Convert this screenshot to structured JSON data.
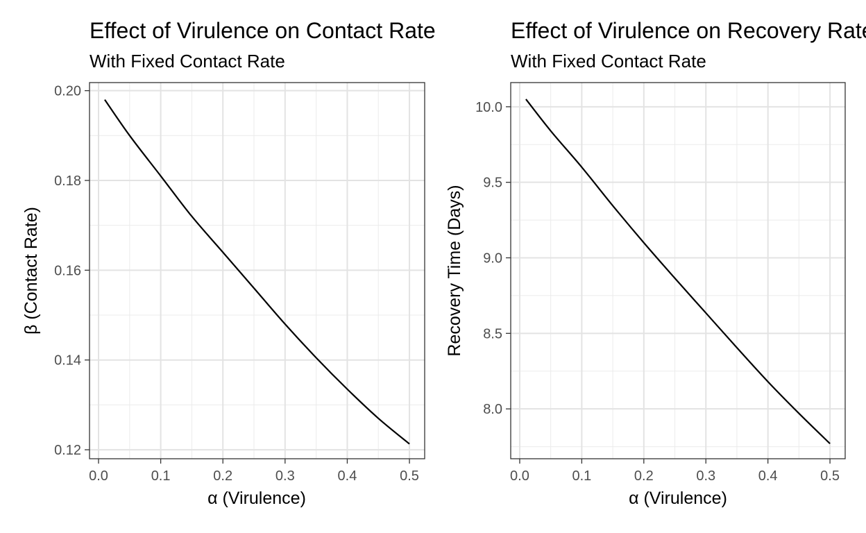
{
  "chart_data": [
    {
      "type": "line",
      "title": "Effect of Virulence on Contact Rate",
      "subtitle": "With Fixed Contact Rate",
      "xlabel": "α  (Virulence)",
      "ylabel": "β  (Contact Rate)",
      "xlim": [
        -0.0145,
        0.5245
      ],
      "ylim": [
        0.118,
        0.2018
      ],
      "x_ticks": [
        0.0,
        0.1,
        0.2,
        0.3,
        0.4,
        0.5
      ],
      "x_tick_labels": [
        "0.0",
        "0.1",
        "0.2",
        "0.3",
        "0.4",
        "0.5"
      ],
      "y_ticks": [
        0.12,
        0.14,
        0.16,
        0.18,
        0.2
      ],
      "y_tick_labels": [
        "0.12",
        "0.14",
        "0.16",
        "0.18",
        "0.20"
      ],
      "grid": true,
      "series": [
        {
          "color": "#000000",
          "x": [
            0.01,
            0.05,
            0.1,
            0.15,
            0.2,
            0.25,
            0.3,
            0.35,
            0.4,
            0.45,
            0.5
          ],
          "y": [
            0.198,
            0.19,
            0.181,
            0.172,
            0.164,
            0.156,
            0.148,
            0.1405,
            0.1335,
            0.127,
            0.1213
          ]
        }
      ]
    },
    {
      "type": "line",
      "title": "Effect of Virulence on Recovery Rate",
      "subtitle": "With Fixed Contact Rate",
      "xlabel": "α  (Virulence)",
      "ylabel": "Recovery Time (Days)",
      "xlim": [
        -0.0145,
        0.5245
      ],
      "ylim": [
        7.67,
        10.16
      ],
      "x_ticks": [
        0.0,
        0.1,
        0.2,
        0.3,
        0.4,
        0.5
      ],
      "x_tick_labels": [
        "0.0",
        "0.1",
        "0.2",
        "0.3",
        "0.4",
        "0.5"
      ],
      "y_ticks": [
        8.0,
        8.5,
        9.0,
        9.5,
        10.0
      ],
      "y_tick_labels": [
        "8.0",
        "8.5",
        "9.0",
        "9.5",
        "10.0"
      ],
      "grid": true,
      "series": [
        {
          "color": "#000000",
          "x": [
            0.01,
            0.05,
            0.1,
            0.15,
            0.2,
            0.25,
            0.3,
            0.35,
            0.4,
            0.45,
            0.5
          ],
          "y": [
            10.05,
            9.84,
            9.6,
            9.345,
            9.1,
            8.865,
            8.635,
            8.405,
            8.18,
            7.97,
            7.77
          ]
        }
      ]
    }
  ]
}
